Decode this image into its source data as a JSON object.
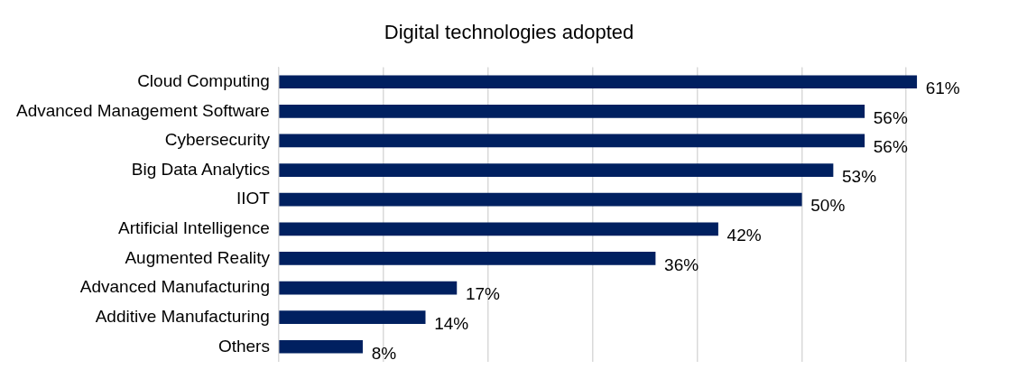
{
  "chart_data": {
    "type": "bar",
    "orientation": "horizontal",
    "title": "Digital technologies adopted",
    "categories": [
      "Cloud Computing",
      "Advanced Management Software",
      "Cybersecurity",
      "Big Data Analytics",
      "IIOT",
      "Artificial Intelligence",
      "Augmented Reality",
      "Advanced Manufacturing",
      "Additive Manufacturing",
      "Others"
    ],
    "values": [
      61,
      56,
      56,
      53,
      50,
      42,
      36,
      17,
      14,
      8
    ],
    "value_labels": [
      "61%",
      "56%",
      "56%",
      "53%",
      "50%",
      "42%",
      "36%",
      "17%",
      "14%",
      "8%"
    ],
    "color": "#002060",
    "xticks": [
      {
        "value": 0,
        "label": null
      },
      {
        "value": 10,
        "label": null
      },
      {
        "value": 20,
        "label": null
      },
      {
        "value": 30,
        "label": null
      },
      {
        "value": 40,
        "label": null
      },
      {
        "value": 50,
        "label": null
      },
      {
        "value": 60,
        "label": null
      }
    ],
    "grid": "x",
    "tick_labels": "y",
    "legend": false
  }
}
